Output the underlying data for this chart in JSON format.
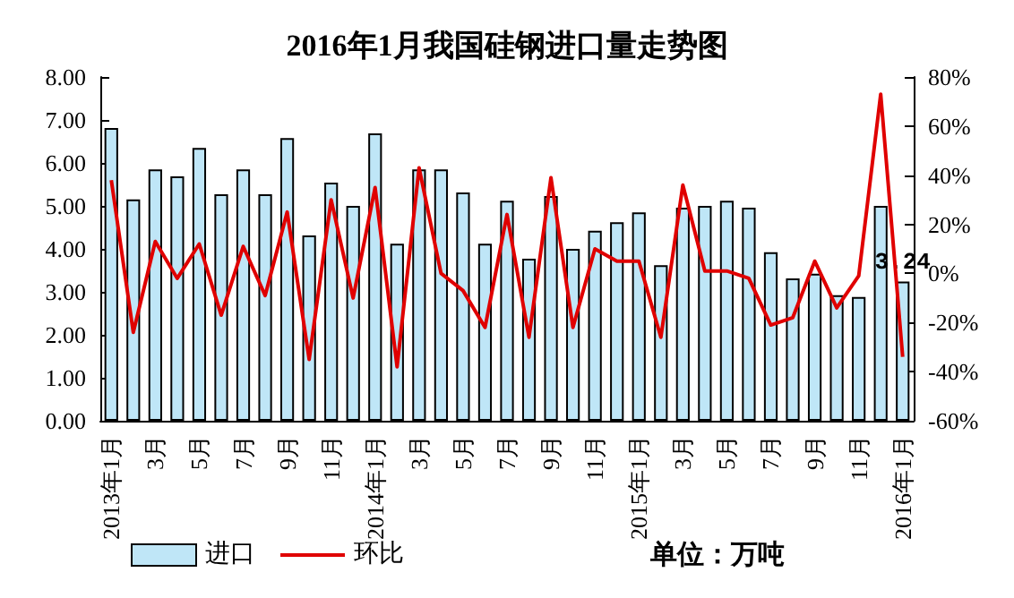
{
  "chart_data": {
    "type": "bar",
    "title": "2016年1月我国硅钢进口量走势图",
    "categories": [
      "2013年1月",
      null,
      "3月",
      null,
      "5月",
      null,
      "7月",
      null,
      "9月",
      null,
      "11月",
      null,
      "2014年1月",
      null,
      "3月",
      null,
      "5月",
      null,
      "7月",
      null,
      "9月",
      null,
      "11月",
      null,
      "2015年1月",
      null,
      "3月",
      null,
      "5月",
      null,
      "7月",
      null,
      "9月",
      null,
      "11月",
      null,
      "2016年1月"
    ],
    "series": [
      {
        "name": "进口",
        "color": "#bfe6f7",
        "values": [
          6.81,
          5.15,
          5.85,
          5.69,
          6.35,
          5.27,
          5.85,
          5.27,
          6.58,
          4.31,
          5.54,
          5.0,
          6.69,
          4.12,
          5.85,
          5.85,
          5.31,
          4.12,
          5.12,
          3.77,
          5.23,
          4.0,
          4.42,
          4.62,
          4.85,
          3.62,
          4.96,
          5.0,
          5.12,
          4.96,
          3.92,
          3.31,
          3.42,
          2.92,
          2.88,
          5.0,
          3.24
        ],
        "value_labels": [
          null,
          null,
          null,
          null,
          null,
          null,
          null,
          null,
          null,
          null,
          null,
          null,
          null,
          null,
          null,
          null,
          null,
          null,
          null,
          null,
          null,
          null,
          null,
          null,
          null,
          null,
          null,
          null,
          null,
          null,
          null,
          null,
          null,
          null,
          null,
          null,
          "3.24"
        ]
      },
      {
        "name": "环比",
        "type": "line",
        "axis": "y2",
        "color": "#e00000",
        "marker": "none",
        "values": [
          38,
          -24,
          13,
          -2,
          12,
          -17,
          11,
          -9,
          25,
          -35,
          30,
          -10,
          35,
          -38,
          43,
          0,
          -7,
          -22,
          24,
          -26,
          39,
          -22,
          10,
          5,
          5,
          -26,
          36,
          1,
          1,
          -2,
          -21,
          -18,
          5,
          -14,
          -1,
          73,
          -34
        ]
      }
    ],
    "ylim": [
      0,
      8
    ],
    "yticks": [
      {
        "value": 0,
        "label": "0.00"
      },
      {
        "value": 1,
        "label": "1.00"
      },
      {
        "value": 2,
        "label": "2.00"
      },
      {
        "value": 3,
        "label": "3.00"
      },
      {
        "value": 4,
        "label": "4.00"
      },
      {
        "value": 5,
        "label": "5.00"
      },
      {
        "value": 6,
        "label": "6.00"
      },
      {
        "value": 7,
        "label": "7.00"
      },
      {
        "value": 8,
        "label": "8.00"
      }
    ],
    "y2lim": [
      -60,
      80
    ],
    "y2ticks": [
      {
        "value": -60,
        "label": "-60%"
      },
      {
        "value": -40,
        "label": "-40%"
      },
      {
        "value": -20,
        "label": "-20%"
      },
      {
        "value": 0,
        "label": "0%"
      },
      {
        "value": 20,
        "label": "20%"
      },
      {
        "value": 40,
        "label": "40%"
      },
      {
        "value": 60,
        "label": "60%"
      },
      {
        "value": 80,
        "label": "80%"
      }
    ],
    "annotations": [
      "单位：万吨"
    ],
    "legend": "bottom left",
    "grid": false
  }
}
